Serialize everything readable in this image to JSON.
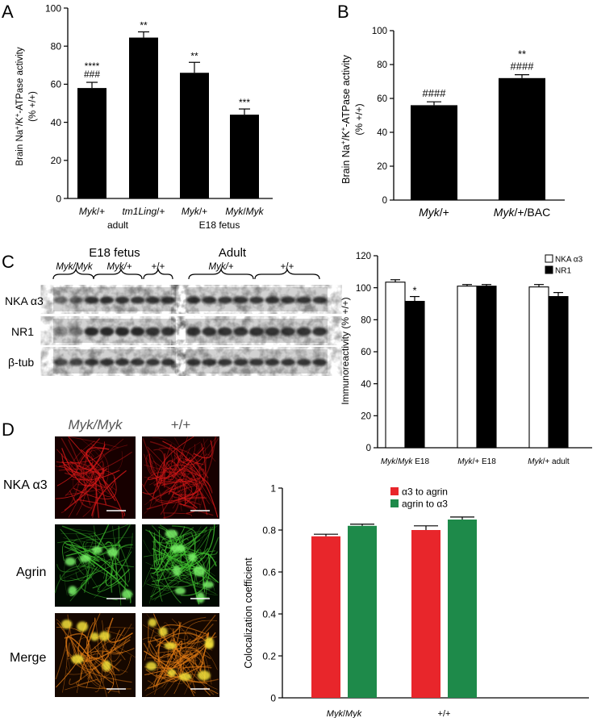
{
  "panels": {
    "A": {
      "letter": "A",
      "chart_data": {
        "type": "bar",
        "ylabel": "Brain Na⁺/K⁺-ATPase activity (% +/+)",
        "ylim": [
          0,
          100
        ],
        "yticks": [
          0,
          20,
          40,
          60,
          80,
          100
        ],
        "categories": [
          "Myk/+",
          "tm1Ling/+",
          "Myk/+",
          "Myk/Myk"
        ],
        "values": [
          58,
          84.5,
          66,
          44
        ],
        "errors": [
          3,
          3,
          5.5,
          3
        ],
        "sig": [
          "****",
          "**",
          "**",
          "***"
        ],
        "sig2": [
          "###",
          "",
          "",
          ""
        ],
        "group_labels": [
          "adult",
          "E18 fetus"
        ]
      }
    },
    "B": {
      "letter": "B",
      "chart_data": {
        "type": "bar",
        "ylabel": "Brain Na⁺/K⁺-ATPase activity (% +/+)",
        "ylim": [
          0,
          100
        ],
        "yticks": [
          0,
          20,
          40,
          60,
          80,
          100
        ],
        "categories": [
          "Myk/+",
          "Myk/+/BAC"
        ],
        "values": [
          56,
          72
        ],
        "errors": [
          2,
          2
        ],
        "sig": [
          "####",
          "**"
        ],
        "sig2": [
          "",
          "####"
        ]
      }
    },
    "C": {
      "letter": "C",
      "blot": {
        "groups": [
          "E18 fetus",
          "Adult"
        ],
        "genotypes_left": [
          "Myk/Myk",
          "Myk/+",
          "+/+"
        ],
        "genotypes_right": [
          "Myk/+",
          "+/+"
        ],
        "rows": [
          "NKA α3",
          "NR1",
          "β-tub"
        ]
      },
      "chart_data": {
        "type": "bar",
        "ylabel": "Immunoreactivity (% +/+)",
        "ylim": [
          0,
          120
        ],
        "yticks": [
          0,
          20,
          40,
          60,
          80,
          100,
          120
        ],
        "categories": [
          "Myk/Myk E18",
          "Myk/+ E18",
          "Myk/+ adult"
        ],
        "series": [
          {
            "name": "NKA α3",
            "values": [
              103.5,
              101,
              100.5
            ],
            "errors": [
              1.5,
              1,
              1.5
            ],
            "color": "#ffffff"
          },
          {
            "name": "NR1",
            "values": [
              91.5,
              101,
              94.5
            ],
            "errors": [
              3,
              1,
              2.5
            ],
            "color": "#000000"
          }
        ],
        "sig": [
          "*",
          "",
          ""
        ],
        "legend_position": "top-right"
      }
    },
    "D": {
      "letter": "D",
      "image_cols": [
        "Myk/Myk",
        "+/+"
      ],
      "image_rows": [
        "NKA α3",
        "Agrin",
        "Merge"
      ],
      "chart_data": {
        "type": "bar",
        "ylabel": "Colocalization coefficient",
        "ylim": [
          0,
          1
        ],
        "yticks": [
          "0",
          "0.2",
          "0.4",
          "0.6",
          "0.8",
          "1"
        ],
        "categories": [
          "Myk/Myk",
          "+/+"
        ],
        "series": [
          {
            "name": "α3 to agrin",
            "values": [
              0.77,
              0.8
            ],
            "errors": [
              0.01,
              0.02
            ],
            "color": "#e8262b"
          },
          {
            "name": "agrin to α3",
            "values": [
              0.82,
              0.85
            ],
            "errors": [
              0.008,
              0.012
            ],
            "color": "#1e8a4a"
          }
        ],
        "legend_position": "top"
      }
    }
  }
}
